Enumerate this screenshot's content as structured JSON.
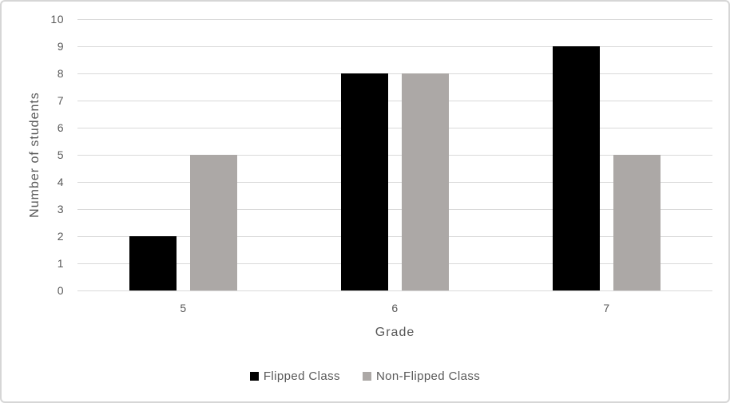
{
  "chart_data": {
    "type": "bar",
    "title": "",
    "categories": [
      "5",
      "6",
      "7"
    ],
    "series": [
      {
        "name": "Flipped Class",
        "values": [
          2,
          8,
          9
        ],
        "color": "#000000"
      },
      {
        "name": "Non-Flipped Class",
        "values": [
          5,
          8,
          5
        ],
        "color": "#aca8a6"
      }
    ],
    "xlabel": "Grade",
    "ylabel": "Number of students",
    "ylim": [
      0,
      10
    ],
    "ytick_step": 1,
    "grid": "horizontal",
    "legend_position": "bottom",
    "colors": {
      "text": "#595959",
      "gridline": "#d9d9d9",
      "frame_border": "#d6d6d6",
      "background": "#ffffff"
    }
  }
}
